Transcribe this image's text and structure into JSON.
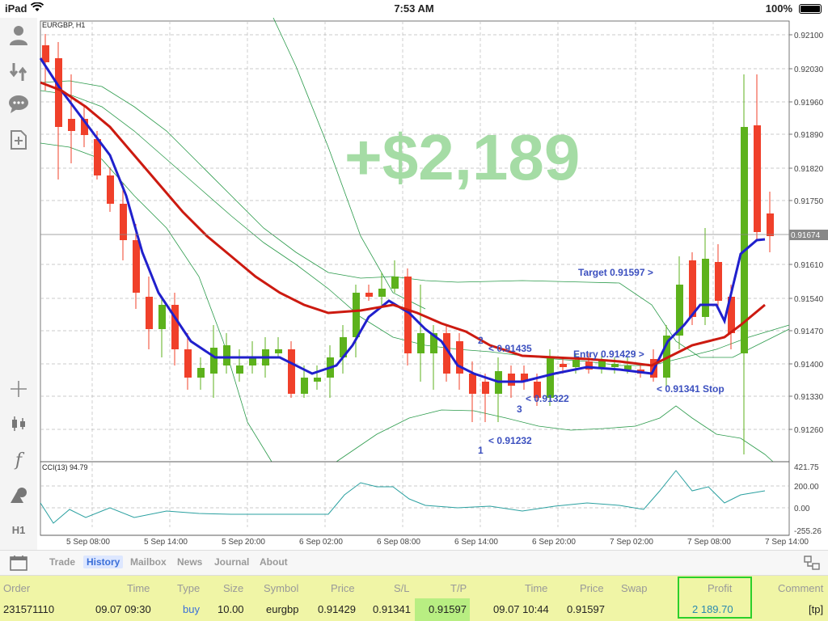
{
  "status": {
    "device": "iPad",
    "time": "7:53 AM",
    "battery": "100%"
  },
  "sidebar": {
    "icons": [
      "person-icon",
      "transfer-icon",
      "chat-icon",
      "add-document-icon",
      "crosshair-icon",
      "candlestick-icon",
      "function-icon",
      "shapes-icon"
    ],
    "timeframe": "H1"
  },
  "chart": {
    "symbol": "EURGBP, H1",
    "overlay": "+$2,189",
    "price_labels": [
      "0.92100",
      "0.92030",
      "0.91960",
      "0.91890",
      "0.91820",
      "0.91750",
      "0.91610",
      "0.91540",
      "0.91470",
      "0.91400",
      "0.91330",
      "0.91260"
    ],
    "current_price": "0.91674",
    "annotations": {
      "target": "Target 0.91597 >",
      "entry": "Entry 0.91429 >",
      "stop": "< 0.91341  Stop",
      "p1": "1",
      "p1_price": "< 0.91232",
      "p2": "2",
      "p2_price": "< 0.91435",
      "p3": "3",
      "p3_price": "< 0.91322"
    },
    "cci_label": "CCI(13) 94.79",
    "cci_levels": [
      "421.75",
      "200.00",
      "0.00",
      "-255.26"
    ],
    "time_labels": [
      "5 Sep 08:00",
      "5 Sep 14:00",
      "5 Sep 20:00",
      "6 Sep 02:00",
      "6 Sep 08:00",
      "6 Sep 14:00",
      "6 Sep 20:00",
      "7 Sep 02:00",
      "7 Sep 08:00",
      "7 Sep 14:00"
    ],
    "colors": {
      "bull": "#5db21c",
      "bear": "#f0402a",
      "ma_fast": "#2020cc",
      "ma_slow": "#cc1a10",
      "band": "#2a9a4a",
      "overlay": "#a5dca5"
    }
  },
  "tabs": [
    "Trade",
    "History",
    "Mailbox",
    "News",
    "Journal",
    "About"
  ],
  "active_tab": "History",
  "history": {
    "headers": {
      "order": "Order",
      "time_open": "Time",
      "type": "Type",
      "size": "Size",
      "symbol": "Symbol",
      "price_open": "Price",
      "sl": "S/L",
      "tp": "T/P",
      "time_close": "Time",
      "price_close": "Price",
      "swap": "Swap",
      "profit": "Profit",
      "comment": "Comment"
    },
    "row": {
      "order": "231571110",
      "time_open": "09.07 09:30",
      "type": "buy",
      "size": "10.00",
      "symbol": "eurgbp",
      "price_open": "0.91429",
      "sl": "0.91341",
      "tp": "0.91597",
      "time_close": "09.07 10:44",
      "price_close": "0.91597",
      "swap": "",
      "profit": "2 189.70",
      "comment": "[tp]"
    }
  }
}
